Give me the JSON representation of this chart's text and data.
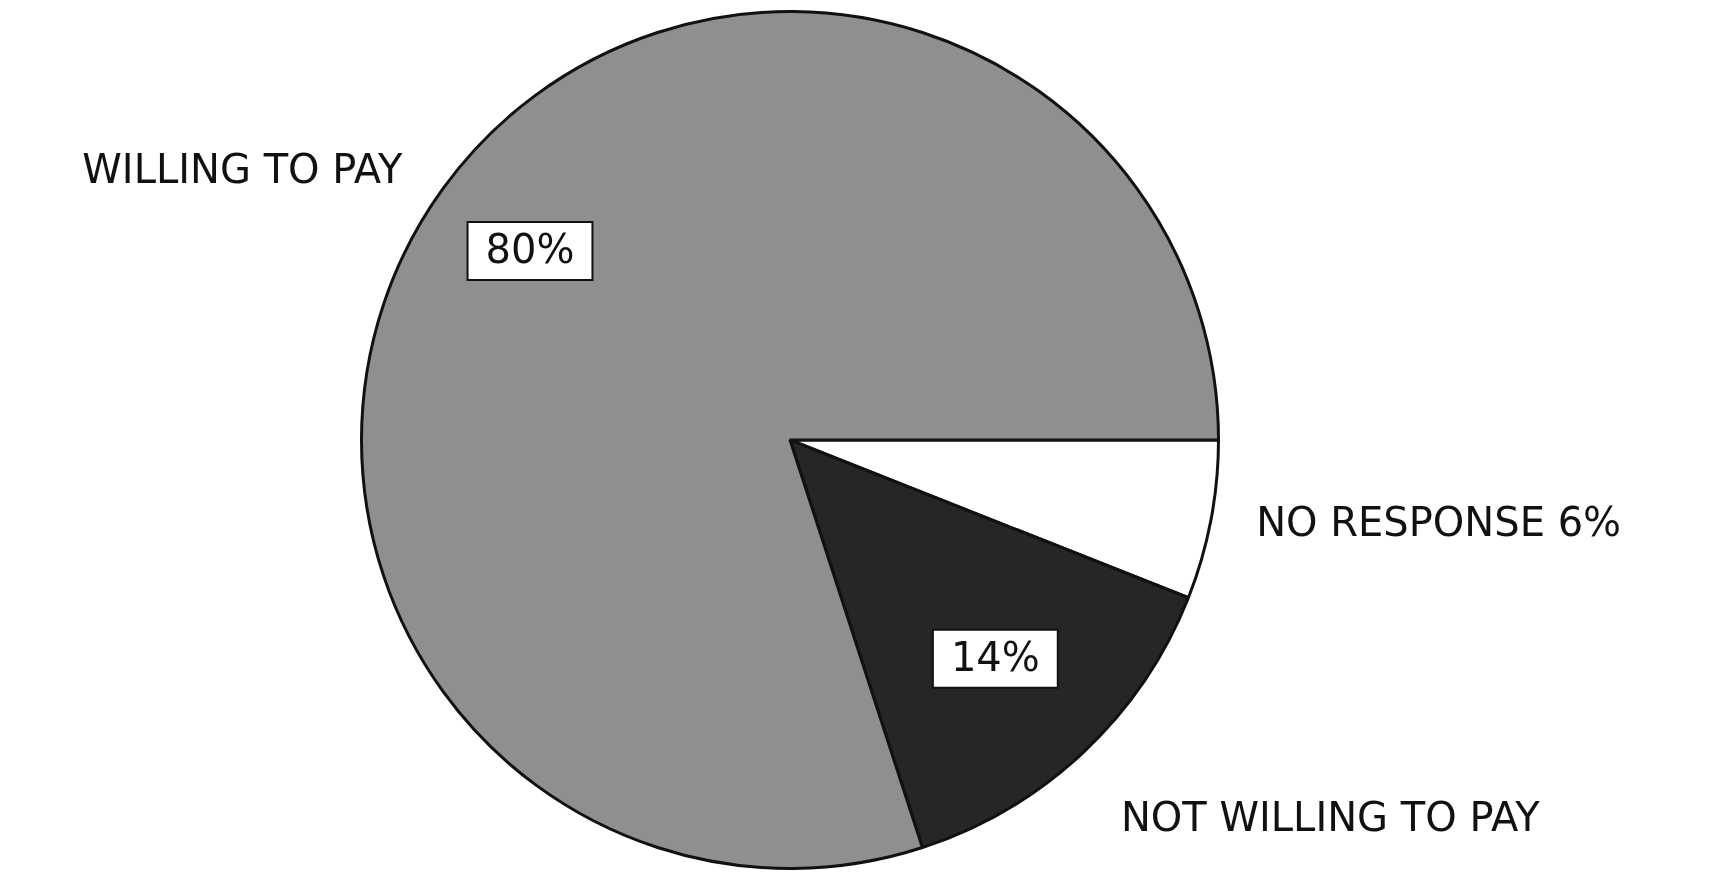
{
  "chart_data": {
    "type": "pie",
    "categories": [
      "NO RESPONSE",
      "NOT WILLING TO PAY",
      "WILLING TO PAY"
    ],
    "values": [
      6,
      14,
      80
    ],
    "colors": [
      "#ffffff",
      "#262626",
      "#8f8f8f"
    ],
    "value_labels": [
      "6%",
      "14%",
      "80%"
    ],
    "legend": false
  }
}
